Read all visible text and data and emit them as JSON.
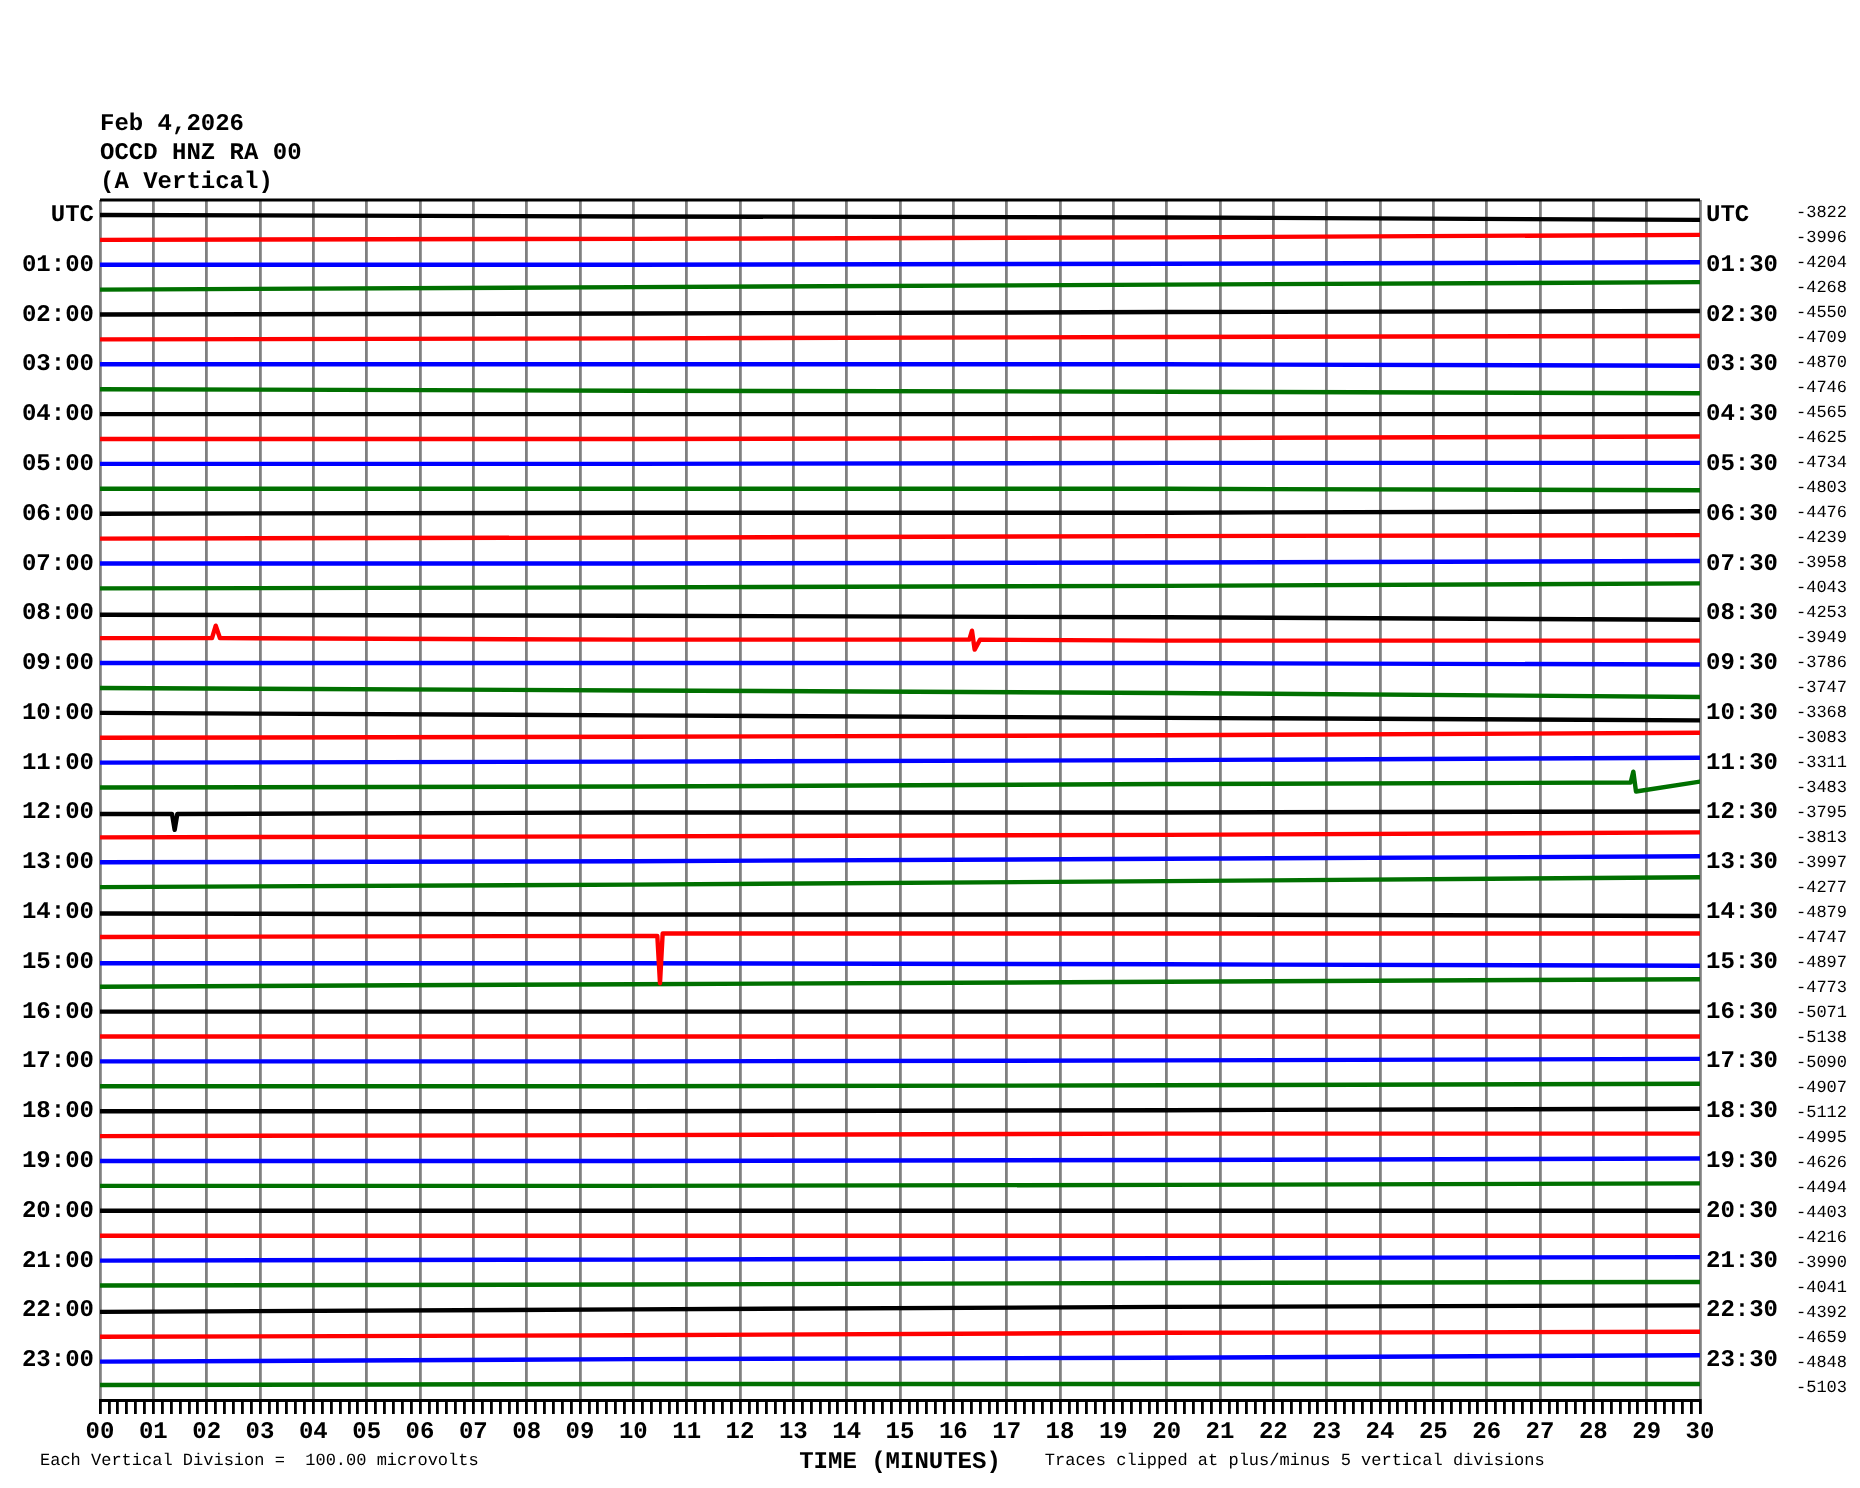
{
  "chart_data": {
    "type": "line",
    "title": "Feb 4,2026",
    "subtitle": "OCCD HNZ RA 00\n(A Vertical)",
    "xlabel": "TIME (MINUTES)",
    "annotations": [
      "Each Vertical Division =  100.00 microvolts",
      "Traces clipped at plus/minus 5 vertical divisions",
      "-3822",
      "-3996",
      "-4204",
      "-4268",
      "-4550",
      "-4709",
      "-4870",
      "-4746",
      "-4565",
      "-4625",
      "-4734",
      "-4803",
      "-4476",
      "-4239",
      "-3958",
      "-4043",
      "-4253",
      "-3949",
      "-3786",
      "-3747",
      "-3368",
      "-3083",
      "-3311",
      "-3483",
      "-3795",
      "-3813",
      "-3997",
      "-4277",
      "-4879",
      "-4747",
      "-4897",
      "-4773",
      "-5071",
      "-5138",
      "-5090",
      "-4907",
      "-5112",
      "-4995",
      "-4626",
      "-4494",
      "-4403",
      "-4216",
      "-3990",
      "-4041",
      "-4392",
      "-4659",
      "-4848",
      "-5103"
    ],
    "x": [
      0,
      10,
      20,
      30
    ],
    "xlim": [
      0,
      30
    ],
    "xticks": [
      {
        "value": 0,
        "label": "00"
      },
      {
        "value": 0.17,
        "label": null
      },
      {
        "value": 0.33,
        "label": null
      },
      {
        "value": 0.5,
        "label": null
      },
      {
        "value": 0.67,
        "label": null
      },
      {
        "value": 0.83,
        "label": null
      },
      {
        "value": 1,
        "label": "01"
      },
      {
        "value": 1.17,
        "label": null
      },
      {
        "value": 1.33,
        "label": null
      },
      {
        "value": 1.5,
        "label": null
      },
      {
        "value": 1.67,
        "label": null
      },
      {
        "value": 1.83,
        "label": null
      },
      {
        "value": 2,
        "label": "02"
      },
      {
        "value": 2.17,
        "label": null
      },
      {
        "value": 2.33,
        "label": null
      },
      {
        "value": 2.5,
        "label": null
      },
      {
        "value": 2.67,
        "label": null
      },
      {
        "value": 2.83,
        "label": null
      },
      {
        "value": 3,
        "label": "03"
      },
      {
        "value": 3.17,
        "label": null
      },
      {
        "value": 3.33,
        "label": null
      },
      {
        "value": 3.5,
        "label": null
      },
      {
        "value": 3.67,
        "label": null
      },
      {
        "value": 3.83,
        "label": null
      },
      {
        "value": 4,
        "label": "04"
      },
      {
        "value": 4.17,
        "label": null
      },
      {
        "value": 4.33,
        "label": null
      },
      {
        "value": 4.5,
        "label": null
      },
      {
        "value": 4.67,
        "label": null
      },
      {
        "value": 4.83,
        "label": null
      },
      {
        "value": 5,
        "label": "05"
      },
      {
        "value": 5.17,
        "label": null
      },
      {
        "value": 5.33,
        "label": null
      },
      {
        "value": 5.5,
        "label": null
      },
      {
        "value": 5.67,
        "label": null
      },
      {
        "value": 5.83,
        "label": null
      },
      {
        "value": 6,
        "label": "06"
      },
      {
        "value": 6.17,
        "label": null
      },
      {
        "value": 6.33,
        "label": null
      },
      {
        "value": 6.5,
        "label": null
      },
      {
        "value": 6.67,
        "label": null
      },
      {
        "value": 6.83,
        "label": null
      },
      {
        "value": 7,
        "label": "07"
      },
      {
        "value": 7.17,
        "label": null
      },
      {
        "value": 7.33,
        "label": null
      },
      {
        "value": 7.5,
        "label": null
      },
      {
        "value": 7.67,
        "label": null
      },
      {
        "value": 7.83,
        "label": null
      },
      {
        "value": 8,
        "label": "08"
      },
      {
        "value": 8.17,
        "label": null
      },
      {
        "value": 8.33,
        "label": null
      },
      {
        "value": 8.5,
        "label": null
      },
      {
        "value": 8.67,
        "label": null
      },
      {
        "value": 8.83,
        "label": null
      },
      {
        "value": 9,
        "label": "09"
      },
      {
        "value": 9.17,
        "label": null
      },
      {
        "value": 9.33,
        "label": null
      },
      {
        "value": 9.5,
        "label": null
      },
      {
        "value": 9.67,
        "label": null
      },
      {
        "value": 9.83,
        "label": null
      },
      10,
      {
        "value": 10.17,
        "label": null
      },
      {
        "value": 10.33,
        "label": null
      },
      {
        "value": 10.5,
        "label": null
      },
      {
        "value": 10.67,
        "label": null
      },
      {
        "value": 10.83,
        "label": null
      },
      11,
      {
        "value": 11.17,
        "label": null
      },
      {
        "value": 11.33,
        "label": null
      },
      {
        "value": 11.5,
        "label": null
      },
      {
        "value": 11.67,
        "label": null
      },
      {
        "value": 11.83,
        "label": null
      },
      12,
      {
        "value": 12.17,
        "label": null
      },
      {
        "value": 12.33,
        "label": null
      },
      {
        "value": 12.5,
        "label": null
      },
      {
        "value": 12.67,
        "label": null
      },
      {
        "value": 12.83,
        "label": null
      },
      13,
      {
        "value": 13.17,
        "label": null
      },
      {
        "value": 13.33,
        "label": null
      },
      {
        "value": 13.5,
        "label": null
      },
      {
        "value": 13.67,
        "label": null
      },
      {
        "value": 13.83,
        "label": null
      },
      14,
      {
        "value": 14.17,
        "label": null
      },
      {
        "value": 14.33,
        "label": null
      },
      {
        "value": 14.5,
        "label": null
      },
      {
        "value": 14.67,
        "label": null
      },
      {
        "value": 14.83,
        "label": null
      },
      15,
      {
        "value": 15.17,
        "label": null
      },
      {
        "value": 15.33,
        "label": null
      },
      {
        "value": 15.5,
        "label": null
      },
      {
        "value": 15.67,
        "label": null
      },
      {
        "value": 15.83,
        "label": null
      },
      16,
      {
        "value": 16.17,
        "label": null
      },
      {
        "value": 16.33,
        "label": null
      },
      {
        "value": 16.5,
        "label": null
      },
      {
        "value": 16.67,
        "label": null
      },
      {
        "value": 16.83,
        "label": null
      },
      17,
      {
        "value": 17.17,
        "label": null
      },
      {
        "value": 17.33,
        "label": null
      },
      {
        "value": 17.5,
        "label": null
      },
      {
        "value": 17.67,
        "label": null
      },
      {
        "value": 17.83,
        "label": null
      },
      18,
      {
        "value": 18.17,
        "label": null
      },
      {
        "value": 18.33,
        "label": null
      },
      {
        "value": 18.5,
        "label": null
      },
      {
        "value": 18.67,
        "label": null
      },
      {
        "value": 18.83,
        "label": null
      },
      19,
      {
        "value": 19.17,
        "label": null
      },
      {
        "value": 19.33,
        "label": null
      },
      {
        "value": 19.5,
        "label": null
      },
      {
        "value": 19.67,
        "label": null
      },
      {
        "value": 19.83,
        "label": null
      },
      20,
      {
        "value": 20.17,
        "label": null
      },
      {
        "value": 20.33,
        "label": null
      },
      {
        "value": 20.5,
        "label": null
      },
      {
        "value": 20.67,
        "label": null
      },
      {
        "value": 20.83,
        "label": null
      },
      21,
      {
        "value": 21.17,
        "label": null
      },
      {
        "value": 21.33,
        "label": null
      },
      {
        "value": 21.5,
        "label": null
      },
      {
        "value": 21.67,
        "label": null
      },
      {
        "value": 21.83,
        "label": null
      },
      22,
      {
        "value": 22.17,
        "label": null
      },
      {
        "value": 22.33,
        "label": null
      },
      {
        "value": 22.5,
        "label": null
      },
      {
        "value": 22.67,
        "label": null
      },
      {
        "value": 22.83,
        "label": null
      },
      23,
      {
        "value": 23.17,
        "label": null
      },
      {
        "value": 23.33,
        "label": null
      },
      {
        "value": 23.5,
        "label": null
      },
      {
        "value": 23.67,
        "label": null
      },
      {
        "value": 23.83,
        "label": null
      },
      24,
      {
        "value": 24.17,
        "label": null
      },
      {
        "value": 24.33,
        "label": null
      },
      {
        "value": 24.5,
        "label": null
      },
      {
        "value": 24.67,
        "label": null
      },
      {
        "value": 24.83,
        "label": null
      },
      25,
      {
        "value": 25.17,
        "label": null
      },
      {
        "value": 25.33,
        "label": null
      },
      {
        "value": 25.5,
        "label": null
      },
      {
        "value": 25.67,
        "label": null
      },
      {
        "value": 25.83,
        "label": null
      },
      26,
      {
        "value": 26.17,
        "label": null
      },
      {
        "value": 26.33,
        "label": null
      },
      {
        "value": 26.5,
        "label": null
      },
      {
        "value": 26.67,
        "label": null
      },
      {
        "value": 26.83,
        "label": null
      },
      27,
      {
        "value": 27.17,
        "label": null
      },
      {
        "value": 27.33,
        "label": null
      },
      {
        "value": 27.5,
        "label": null
      },
      {
        "value": 27.67,
        "label": null
      },
      {
        "value": 27.83,
        "label": null
      },
      28,
      {
        "value": 28.17,
        "label": null
      },
      {
        "value": 28.33,
        "label": null
      },
      {
        "value": 28.5,
        "label": null
      },
      {
        "value": 28.67,
        "label": null
      },
      {
        "value": 28.83,
        "label": null
      },
      29,
      {
        "value": 29.17,
        "label": null
      },
      {
        "value": 29.33,
        "label": null
      },
      {
        "value": 29.5,
        "label": null
      },
      {
        "value": 29.67,
        "label": null
      },
      {
        "value": 29.83,
        "label": null
      },
      30
    ],
    "ylim": [
      23.8,
      -0.3
    ],
    "yticks": [
      {
        "value": 0,
        "label": "UTC"
      },
      {
        "value": 1,
        "label": "01:00"
      },
      {
        "value": 2,
        "label": "02:00"
      },
      {
        "value": 3,
        "label": "03:00"
      },
      {
        "value": 4,
        "label": "04:00"
      },
      {
        "value": 5,
        "label": "05:00"
      },
      {
        "value": 6,
        "label": "06:00"
      },
      {
        "value": 7,
        "label": "07:00"
      },
      {
        "value": 8,
        "label": "08:00"
      },
      {
        "value": 9,
        "label": "09:00"
      },
      {
        "value": 10,
        "label": "10:00"
      },
      {
        "value": 11,
        "label": "11:00"
      },
      {
        "value": 12,
        "label": "12:00"
      },
      {
        "value": 13,
        "label": "13:00"
      },
      {
        "value": 14,
        "label": "14:00"
      },
      {
        "value": 15,
        "label": "15:00"
      },
      {
        "value": 16,
        "label": "16:00"
      },
      {
        "value": 17,
        "label": "17:00"
      },
      {
        "value": 18,
        "label": "18:00"
      },
      {
        "value": 19,
        "label": "19:00"
      },
      {
        "value": 20,
        "label": "20:00"
      },
      {
        "value": 21,
        "label": "21:00"
      },
      {
        "value": 22,
        "label": "22:00"
      },
      {
        "value": 23,
        "label": "23:00"
      }
    ],
    "y2lim": [
      24.3,
      0.2
    ],
    "y2ticks": [
      {
        "value": 0.5,
        "label": "UTC"
      },
      {
        "value": 1.5,
        "label": "01:30"
      },
      {
        "value": 2.5,
        "label": "02:30"
      },
      {
        "value": 3.5,
        "label": "03:30"
      },
      {
        "value": 4.5,
        "label": "04:30"
      },
      {
        "value": 5.5,
        "label": "05:30"
      },
      {
        "value": 6.5,
        "label": "06:30"
      },
      {
        "value": 7.5,
        "label": "07:30"
      },
      {
        "value": 8.5,
        "label": "08:30"
      },
      {
        "value": 9.5,
        "label": "09:30"
      },
      {
        "value": 10.5,
        "label": "10:30"
      },
      {
        "value": 11.5,
        "label": "11:30"
      },
      {
        "value": 12.5,
        "label": "12:30"
      },
      {
        "value": 13.5,
        "label": "13:30"
      },
      {
        "value": 14.5,
        "label": "14:30"
      },
      {
        "value": 15.5,
        "label": "15:30"
      },
      {
        "value": 16.5,
        "label": "16:30"
      },
      {
        "value": 17.5,
        "label": "17:30"
      },
      {
        "value": 18.5,
        "label": "18:30"
      },
      {
        "value": 19.5,
        "label": "19:30"
      },
      {
        "value": 20.5,
        "label": "20:30"
      },
      {
        "value": 21.5,
        "label": "21:30"
      },
      {
        "value": 22.5,
        "label": "22:30"
      },
      {
        "value": 23.5,
        "label": "23:30"
      }
    ],
    "grid": "x",
    "legend": false,
    "marker": "none",
    "series": [
      {
        "color": "#000000",
        "values": [
          0,
          0.03,
          0.05,
          0.1
        ]
      },
      {
        "color": "#ff0000",
        "values": [
          0.5,
          0.48,
          0.45,
          0.4
        ]
      },
      {
        "color": "#0000ff",
        "values": [
          1,
          1,
          0.98,
          0.95
        ]
      },
      {
        "color": "#007000",
        "values": [
          1.5,
          1.45,
          1.4,
          1.35
        ]
      },
      {
        "color": "#000000",
        "values": [
          2,
          1.98,
          1.95,
          1.93
        ]
      },
      {
        "color": "#ff0000",
        "values": [
          2.5,
          2.48,
          2.45,
          2.43
        ]
      },
      {
        "color": "#0000ff",
        "values": [
          3,
          3,
          3,
          3.03
        ]
      },
      {
        "color": "#007000",
        "values": [
          3.5,
          3.53,
          3.55,
          3.58
        ]
      },
      {
        "color": "#000000",
        "values": [
          4,
          4,
          4,
          4
        ]
      },
      {
        "color": "#ff0000",
        "values": [
          4.5,
          4.5,
          4.48,
          4.45
        ]
      },
      {
        "color": "#0000ff",
        "values": [
          5,
          5,
          4.98,
          4.98
        ]
      },
      {
        "color": "#007000",
        "values": [
          5.5,
          5.5,
          5.5,
          5.53
        ]
      },
      {
        "color": "#000000",
        "values": [
          6,
          5.98,
          5.98,
          5.95
        ]
      },
      {
        "color": "#ff0000",
        "values": [
          6.5,
          6.48,
          6.45,
          6.43
        ]
      },
      {
        "color": "#0000ff",
        "values": [
          7,
          7,
          6.98,
          6.95
        ]
      },
      {
        "color": "#007000",
        "values": [
          7.5,
          7.48,
          7.45,
          7.4
        ]
      },
      {
        "color": "#000000",
        "values": [
          8.03,
          8.05,
          8.08,
          8.13
        ]
      },
      {
        "color": "#ff0000",
        "x": [
          0,
          2.1,
          2.17,
          2.25,
          10,
          16.3,
          16.35,
          16.4,
          16.5,
          20,
          30
        ],
        "values": [
          8.5,
          8.5,
          8.25,
          8.5,
          8.53,
          8.53,
          8.35,
          8.73,
          8.53,
          8.55,
          8.55
        ]
      },
      {
        "color": "#0000ff",
        "values": [
          9,
          9,
          9,
          9.03
        ]
      },
      {
        "color": "#007000",
        "values": [
          9.5,
          9.55,
          9.6,
          9.68
        ]
      },
      {
        "color": "#000000",
        "values": [
          10,
          10.05,
          10.1,
          10.15
        ]
      },
      {
        "color": "#ff0000",
        "values": [
          10.5,
          10.48,
          10.45,
          10.4
        ]
      },
      {
        "color": "#0000ff",
        "values": [
          11,
          10.98,
          10.95,
          10.9
        ]
      },
      {
        "color": "#007000",
        "x": [
          0,
          10,
          20,
          28.7,
          28.75,
          28.8,
          30
        ],
        "values": [
          11.5,
          11.48,
          11.43,
          11.4,
          11.18,
          11.58,
          11.38
        ]
      },
      {
        "color": "#000000",
        "x": [
          0,
          1.35,
          1.4,
          1.45,
          10,
          20,
          30
        ],
        "values": [
          12.03,
          12.03,
          12.35,
          12.03,
          12,
          12,
          11.98
        ]
      },
      {
        "color": "#ff0000",
        "values": [
          12.5,
          12.48,
          12.45,
          12.4
        ]
      },
      {
        "color": "#0000ff",
        "values": [
          13,
          12.98,
          12.93,
          12.88
        ]
      },
      {
        "color": "#007000",
        "values": [
          13.5,
          13.45,
          13.38,
          13.3
        ]
      },
      {
        "color": "#000000",
        "values": [
          14.03,
          14.05,
          14.05,
          14.08
        ]
      },
      {
        "color": "#ff0000",
        "x": [
          0,
          10,
          10.45,
          10.5,
          10.55,
          20,
          30
        ],
        "values": [
          14.5,
          14.48,
          14.48,
          15.43,
          14.43,
          14.43,
          14.43
        ]
      },
      {
        "color": "#0000ff",
        "values": [
          15.03,
          15.03,
          15.05,
          15.08
        ]
      },
      {
        "color": "#007000",
        "values": [
          15.5,
          15.45,
          15.4,
          15.35
        ]
      },
      {
        "color": "#000000",
        "values": [
          16,
          16,
          16,
          16
        ]
      },
      {
        "color": "#ff0000",
        "values": [
          16.5,
          16.5,
          16.5,
          16.5
        ]
      },
      {
        "color": "#0000ff",
        "values": [
          17,
          17,
          16.98,
          16.95
        ]
      },
      {
        "color": "#007000",
        "values": [
          17.5,
          17.5,
          17.48,
          17.45
        ]
      },
      {
        "color": "#000000",
        "values": [
          18,
          18,
          17.98,
          17.95
        ]
      },
      {
        "color": "#ff0000",
        "values": [
          18.5,
          18.48,
          18.45,
          18.45
        ]
      },
      {
        "color": "#0000ff",
        "values": [
          19,
          19,
          18.98,
          18.95
        ]
      },
      {
        "color": "#007000",
        "values": [
          19.5,
          19.5,
          19.48,
          19.45
        ]
      },
      {
        "color": "#000000",
        "values": [
          20,
          20,
          20,
          20
        ]
      },
      {
        "color": "#ff0000",
        "values": [
          20.5,
          20.5,
          20.5,
          20.5
        ]
      },
      {
        "color": "#0000ff",
        "values": [
          21,
          20.98,
          20.95,
          20.93
        ]
      },
      {
        "color": "#007000",
        "values": [
          21.5,
          21.48,
          21.45,
          21.43
        ]
      },
      {
        "color": "#000000",
        "values": [
          22.03,
          21.98,
          21.93,
          21.9
        ]
      },
      {
        "color": "#ff0000",
        "values": [
          22.53,
          22.5,
          22.45,
          22.43
        ]
      },
      {
        "color": "#0000ff",
        "values": [
          23.03,
          22.98,
          22.95,
          22.9
        ]
      },
      {
        "color": "#007000",
        "values": [
          23.5,
          23.48,
          23.48,
          23.48
        ]
      }
    ]
  }
}
